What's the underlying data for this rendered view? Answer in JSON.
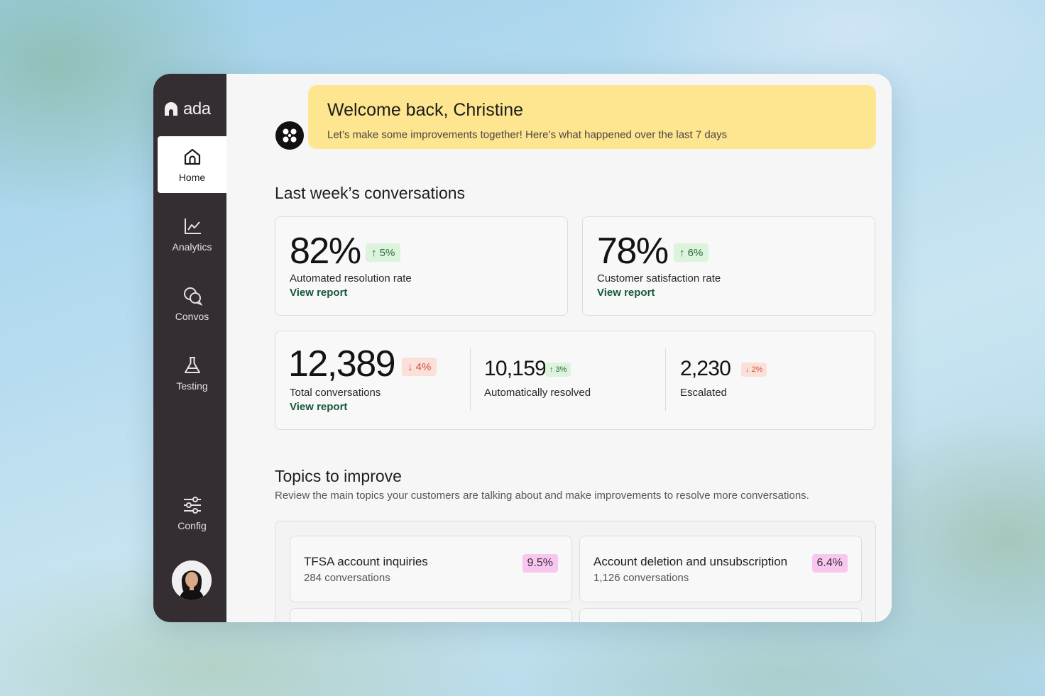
{
  "app": {
    "logo_text": "ada"
  },
  "sidebar": {
    "items": [
      {
        "label": "Home",
        "icon": "home-icon",
        "active": true
      },
      {
        "label": "Analytics",
        "icon": "analytics-icon"
      },
      {
        "label": "Convos",
        "icon": "convos-icon"
      },
      {
        "label": "Testing",
        "icon": "flask-icon"
      },
      {
        "label": "Config",
        "icon": "sliders-icon"
      }
    ]
  },
  "banner": {
    "title": "Welcome back, Christine",
    "subtitle": "Let’s make some improvements together! Here’s what happened over the last 7 days"
  },
  "conversations": {
    "title": "Last week’s conversations",
    "resolution": {
      "value": "82%",
      "change": "↑ 5%",
      "direction": "up",
      "label": "Automated resolution rate",
      "link": "View report"
    },
    "satisfaction": {
      "value": "78%",
      "change": "↑ 6%",
      "direction": "up",
      "label": "Customer satisfaction rate",
      "link": "View report"
    },
    "total": {
      "value": "12,389",
      "change": "↓ 4%",
      "direction": "down",
      "label": "Total conversations",
      "link": "View report"
    },
    "resolved": {
      "value": "10,159",
      "change": "↑ 3%",
      "direction": "up",
      "label": "Automatically resolved"
    },
    "escalated": {
      "value": "2,230",
      "change": "↓ 2%",
      "direction": "down",
      "label": "Escalated"
    }
  },
  "topics": {
    "title": "Topics to improve",
    "subtitle": "Review the main topics your customers are talking about and make improvements to resolve more conversations.",
    "items": [
      {
        "name": "TFSA account inquiries",
        "count": "284 conversations",
        "pct": "9.5%"
      },
      {
        "name": "Account deletion and unsubscription",
        "count": "1,126 conversations",
        "pct": "6.4%"
      }
    ]
  },
  "colors": {
    "sidebar": "#342d31",
    "banner": "#fde68f",
    "positive": "#dcf3dd",
    "negative": "#fbe0da",
    "link": "#17583a",
    "topic_badge": "#f8c7ef"
  }
}
